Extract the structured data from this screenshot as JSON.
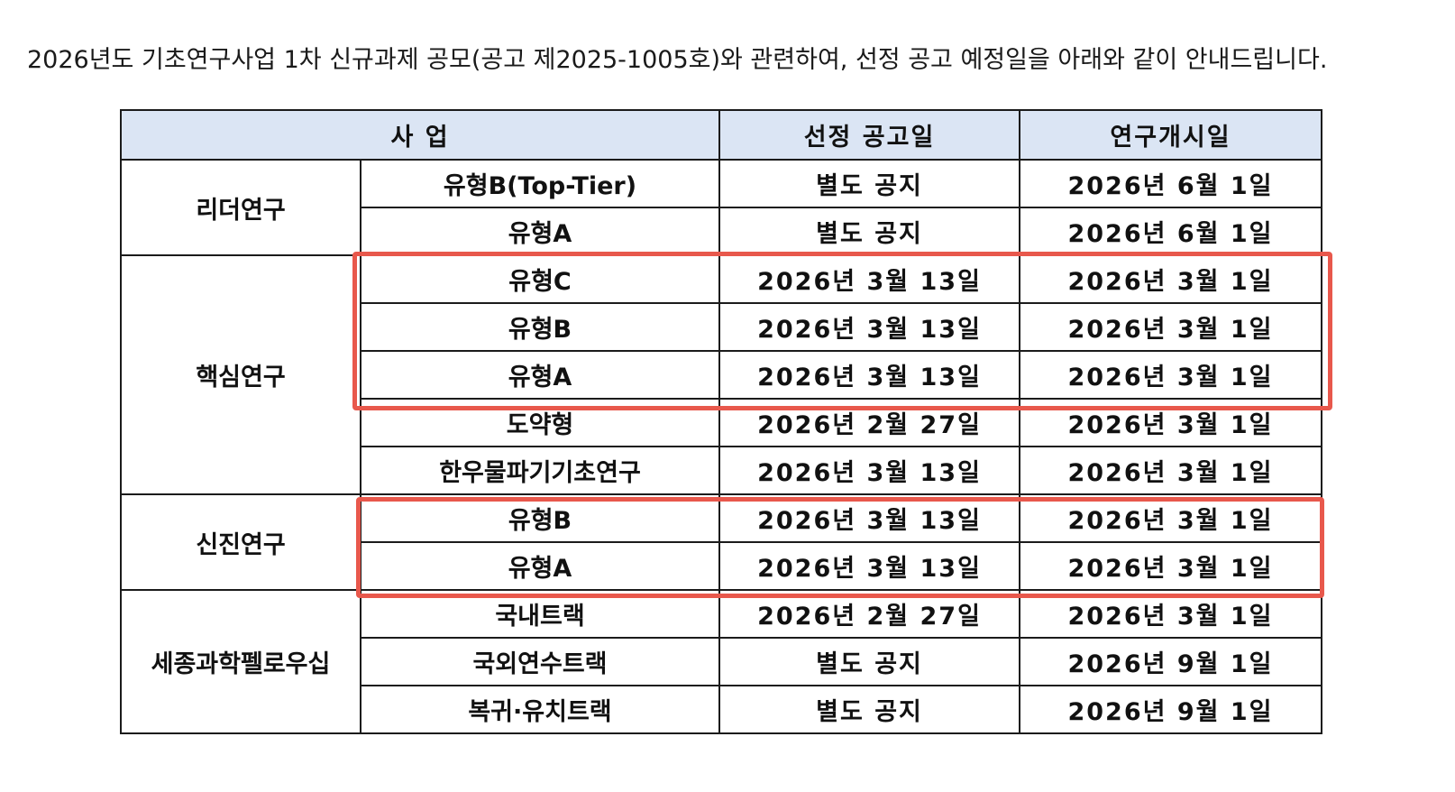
{
  "intro_text": "2026년도 기초연구사업 1차 신규과제 공모(공고 제2025-1005호)와 관련하여, 선정 공고 예정일을 아래와 같이 안내드립니다.",
  "table": {
    "headers": {
      "program": "사 업",
      "announce_date": "선정 공고일",
      "start_date": "연구개시일"
    },
    "groups": [
      {
        "name": "리더연구",
        "rows": [
          {
            "type": "유형B(Top-Tier)",
            "announce": "별도 공지",
            "start": "2026년 6월 1일"
          },
          {
            "type": "유형A",
            "announce": "별도 공지",
            "start": "2026년 6월 1일"
          }
        ]
      },
      {
        "name": "핵심연구",
        "rows": [
          {
            "type": "유형C",
            "announce": "2026년 3월 13일",
            "start": "2026년 3월 1일"
          },
          {
            "type": "유형B",
            "announce": "2026년 3월 13일",
            "start": "2026년 3월 1일"
          },
          {
            "type": "유형A",
            "announce": "2026년 3월 13일",
            "start": "2026년 3월 1일"
          },
          {
            "type": "도약형",
            "announce": "2026년 2월 27일",
            "start": "2026년 3월 1일"
          },
          {
            "type": "한우물파기기초연구",
            "announce": "2026년 3월 13일",
            "start": "2026년 3월 1일"
          }
        ]
      },
      {
        "name": "신진연구",
        "rows": [
          {
            "type": "유형B",
            "announce": "2026년 3월 13일",
            "start": "2026년 3월 1일"
          },
          {
            "type": "유형A",
            "announce": "2026년 3월 13일",
            "start": "2026년 3월 1일"
          }
        ]
      },
      {
        "name": "세종과학펠로우십",
        "rows": [
          {
            "type": "국내트랙",
            "announce": "2026년 2월 27일",
            "start": "2026년 3월 1일"
          },
          {
            "type": "국외연수트랙",
            "announce": "별도 공지",
            "start": "2026년 9월 1일"
          },
          {
            "type": "복귀·유치트랙",
            "announce": "별도 공지",
            "start": "2026년 9월 1일"
          }
        ]
      }
    ]
  },
  "highlights": [
    {
      "group": "핵심연구",
      "rows": [
        "유형C",
        "유형B",
        "유형A"
      ],
      "color": "#e8584c"
    },
    {
      "group": "신진연구",
      "rows": [
        "유형B",
        "유형A"
      ],
      "color": "#e8584c"
    }
  ],
  "colors": {
    "header_bg": "#dbe5f4",
    "highlight": "#e8584c",
    "border": "#1b1b1b"
  }
}
